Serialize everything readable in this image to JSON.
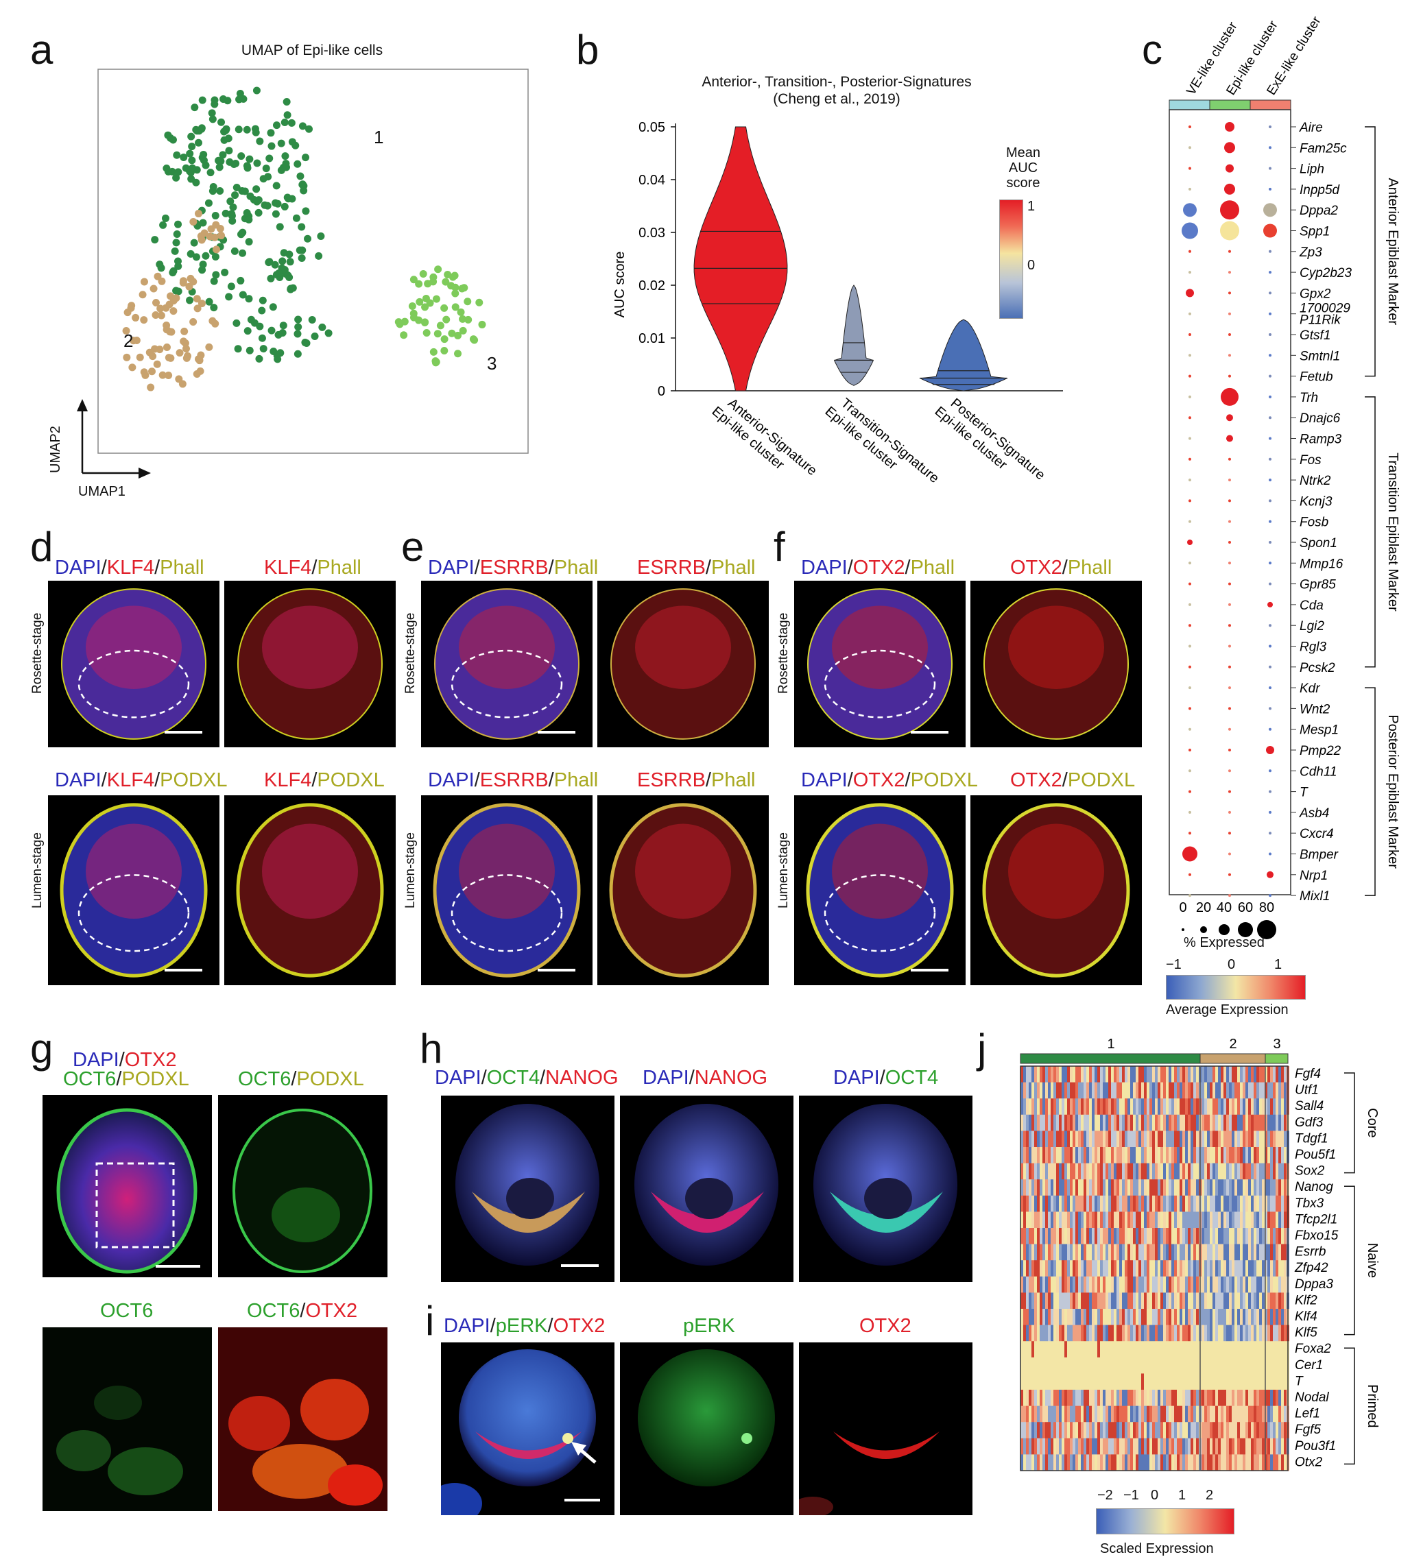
{
  "panels": {
    "a": {
      "letter": "a",
      "title": "UMAP of Epi-like cells",
      "xaxis": "UMAP1",
      "yaxis": "UMAP2",
      "cluster_labels": [
        "1",
        "2",
        "3"
      ],
      "colors": {
        "c1": "#2e8b45",
        "c2": "#c8a26e",
        "c3": "#7ecb5a"
      }
    },
    "b": {
      "letter": "b",
      "title_line1": "Anterior-, Transition-, Posterior-Signatures",
      "title_line2": "(Cheng et al., 2019)"
    },
    "c": {
      "letter": "c",
      "columns": [
        "VE-like cluster",
        "Epi-like cluster",
        "ExE-like cluster"
      ],
      "column_colors": [
        "#9fd8df",
        "#7fcf6f",
        "#f08070"
      ],
      "genes": [
        "Aire",
        "Fam25c",
        "Liph",
        "Inpp5d",
        "Dppa2",
        "Spp1",
        "Zp3",
        "Cyp2b23",
        "Gpx2",
        "1700029 P11Rik",
        "Gtsf1",
        "Smtnl1",
        "Fetub",
        "Trh",
        "Dnajc6",
        "Ramp3",
        "Fos",
        "Ntrk2",
        "Kcnj3",
        "Fosb",
        "Spon1",
        "Mmp16",
        "Gpr85",
        "Cda",
        "Lgi2",
        "Rgl3",
        "Pcsk2",
        "Kdr",
        "Wnt2",
        "Mesp1",
        "Pmp22",
        "Cdh11",
        "T",
        "Asb4",
        "Cxcr4",
        "Bmper",
        "Nrp1",
        "Mixl1"
      ],
      "groups": [
        "Anterior Epiblast Marker",
        "Transition Epiblast Marker",
        "Posterior Epiblast Marker"
      ],
      "size_legend_ticks": [
        "0",
        "20",
        "40",
        "60",
        "80"
      ],
      "size_legend_title": "% Expressed",
      "color_legend_ticks": [
        "−1",
        "0",
        "1"
      ],
      "color_legend_title": "Average Expression"
    },
    "d": {
      "letter": "d",
      "top_left": [
        "DAPI",
        "/",
        "KLF4",
        "/",
        "Phall"
      ],
      "top_right": [
        "KLF4",
        "/",
        "Phall"
      ],
      "bottom_left": [
        "DAPI",
        "/",
        "KLF4",
        "/",
        "PODXL"
      ],
      "bottom_right": [
        "KLF4",
        "/",
        "PODXL"
      ],
      "row_top": "Rosette-stage",
      "row_bottom": "Lumen-stage"
    },
    "e": {
      "letter": "e",
      "top_left": [
        "DAPI",
        "/",
        "ESRRB",
        "/",
        "Phall"
      ],
      "top_right": [
        "ESRRB",
        "/",
        "Phall"
      ],
      "bottom_left": [
        "DAPI",
        "/",
        "ESRRB",
        "/",
        "Phall"
      ],
      "bottom_right": [
        "ESRRB",
        "/",
        "Phall"
      ],
      "row_top": "Rosette-stage",
      "row_bottom": "Lumen-stage"
    },
    "f": {
      "letter": "f",
      "top_left": [
        "DAPI",
        "/",
        "OTX2",
        "/",
        "Phall"
      ],
      "top_right": [
        "OTX2",
        "/",
        "Phall"
      ],
      "bottom_left": [
        "DAPI",
        "/",
        "OTX2",
        "/",
        "PODXL"
      ],
      "bottom_right": [
        "OTX2",
        "/",
        "PODXL"
      ],
      "row_top": "Rosette-stage",
      "row_bottom": "Lumen-stage"
    },
    "g": {
      "letter": "g",
      "top_left_line1": [
        "DAPI",
        "/",
        "OTX2"
      ],
      "top_left_line2": [
        "OCT6",
        "/",
        "PODXL"
      ],
      "top_right": [
        "OCT6",
        "/",
        "PODXL"
      ],
      "bottom_left": [
        "OCT6"
      ],
      "bottom_right": [
        "OCT6",
        "/",
        "OTX2"
      ]
    },
    "h": {
      "letter": "h",
      "left": [
        "DAPI",
        "/",
        "OCT4",
        "/",
        "NANOG"
      ],
      "mid": [
        "DAPI",
        "/",
        "NANOG"
      ],
      "right": [
        "DAPI",
        "/",
        "OCT4"
      ]
    },
    "i": {
      "letter": "i",
      "left": [
        "DAPI",
        "/",
        "pERK",
        "/",
        "OTX2"
      ],
      "mid": [
        "pERK"
      ],
      "right": [
        "OTX2"
      ]
    },
    "j": {
      "letter": "j",
      "clusters": [
        "1",
        "2",
        "3"
      ],
      "cluster_colors": [
        "#2e8b45",
        "#c8a26e",
        "#7ecb5a"
      ],
      "genes": [
        "Fgf4",
        "Utf1",
        "Sall4",
        "Gdf3",
        "Tdgf1",
        "Pou5f1",
        "Sox2",
        "Nanog",
        "Tbx3",
        "Tfcp2l1",
        "Fbxo15",
        "Esrrb",
        "Zfp42",
        "Dppa3",
        "Klf2",
        "Klf4",
        "Klf5",
        "Foxa2",
        "Cer1",
        "T",
        "Nodal",
        "Lef1",
        "Fgf5",
        "Pou3f1",
        "Otx2"
      ],
      "groups": [
        "Core",
        "Naive",
        "Primed"
      ],
      "legend_ticks": [
        "−2",
        "−1",
        "0",
        "1",
        "2"
      ],
      "legend_title": "Scaled Expression"
    }
  },
  "chart_data": [
    {
      "type": "violin",
      "title": "Anterior-, Transition-, Posterior-Signatures (Cheng et al., 2019)",
      "ylabel": "AUC score",
      "ylim": [
        0,
        0.05
      ],
      "yticks": [
        "0",
        "0.01",
        "0.02",
        "0.03",
        "0.04",
        "0.05"
      ],
      "categories": [
        "Anterior-Signature Epi-like cluster",
        "Transition-Signature Epi-like cluster",
        "Posterior-Signature Epi-like cluster"
      ],
      "series": [
        {
          "max": 0.05,
          "min": 0.0,
          "q1": 0.0165,
          "median": 0.0232,
          "q3": 0.0302,
          "color": "#e41e26"
        },
        {
          "max": 0.02,
          "min": 0.001,
          "q1": 0.0035,
          "median": 0.0058,
          "q3": 0.0091,
          "color": "#8e9bb5"
        },
        {
          "max": 0.0135,
          "min": 0.0,
          "q1": 0.0012,
          "median": 0.0024,
          "q3": 0.0038,
          "color": "#4a6fb5"
        }
      ],
      "legend_title": "Mean AUC score",
      "legend_ticks": [
        "1",
        "0"
      ]
    }
  ]
}
